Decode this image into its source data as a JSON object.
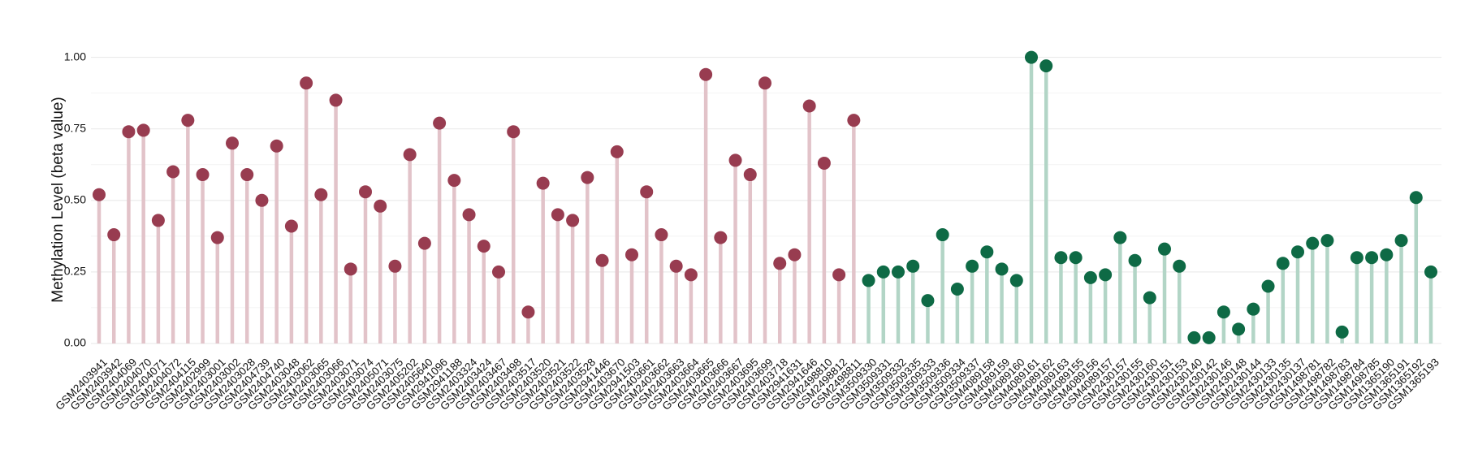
{
  "chart_data": {
    "type": "lollipop",
    "y_label": "Methylation Level (beta value)",
    "ylim": [
      -0.02,
      1.03
    ],
    "yticks": [
      {
        "value": 0,
        "label": "0.00"
      },
      {
        "value": 0.25,
        "label": "0.25"
      },
      {
        "value": 0.5,
        "label": "0.50"
      },
      {
        "value": 0.75,
        "label": "0.75"
      },
      {
        "value": 1,
        "label": "1.00"
      }
    ],
    "grid": true,
    "groups": [
      {
        "color": "#983c50",
        "stem_color": "#e2c3c9",
        "categories": [
          "GSM2403941",
          "GSM2403942",
          "GSM2404069",
          "GSM2404070",
          "GSM2404071",
          "GSM2404072",
          "GSM2404115",
          "GSM2402999",
          "GSM2403001",
          "GSM2403002",
          "GSM2403028",
          "GSM2404739",
          "GSM2404740",
          "GSM2403048",
          "GSM2403062",
          "GSM2403065",
          "GSM2403066",
          "GSM2403071",
          "GSM2403074",
          "GSM2405071",
          "GSM2403075",
          "GSM2405202",
          "GSM2405640",
          "GSM2941096",
          "GSM2941188",
          "GSM2403324",
          "GSM2403424",
          "GSM2403467",
          "GSM2403498",
          "GSM2403517",
          "GSM2403520",
          "GSM2403521",
          "GSM2403522",
          "GSM2403528",
          "GSM2941446",
          "GSM2403670",
          "GSM2941503",
          "GSM2403661",
          "GSM2403662",
          "GSM2403663",
          "GSM2403664",
          "GSM2403665",
          "GSM2403666",
          "GSM2403667",
          "GSM2403695",
          "GSM2403699",
          "GSM2403718",
          "GSM2941631",
          "GSM2941646",
          "GSM2498810",
          "GSM2498812",
          "GSM2498811"
        ],
        "values": [
          0.52,
          0.38,
          0.74,
          0.745,
          0.43,
          0.6,
          0.78,
          0.59,
          0.37,
          0.7,
          0.59,
          0.5,
          0.69,
          0.41,
          0.91,
          0.52,
          0.85,
          0.26,
          0.53,
          0.48,
          0.27,
          0.66,
          0.35,
          0.77,
          0.57,
          0.45,
          0.34,
          0.25,
          0.74,
          0.11,
          0.56,
          0.45,
          0.43,
          0.58,
          0.29,
          0.67,
          0.31,
          0.53,
          0.38,
          0.27,
          0.24,
          0.94,
          0.37,
          0.64,
          0.59,
          0.91,
          0.28,
          0.31,
          0.83,
          0.63,
          0.24,
          0.78
        ]
      },
      {
        "color": "#0e6a45",
        "stem_color": "#b2d5c6",
        "categories": [
          "GSM3509330",
          "GSM3509331",
          "GSM3509332",
          "GSM3509335",
          "GSM3509333",
          "GSM3509336",
          "GSM3509334",
          "GSM3509337",
          "GSM4089158",
          "GSM4089159",
          "GSM4089160",
          "GSM4089161",
          "GSM4089162",
          "GSM4089163",
          "GSM4089155",
          "GSM4089156",
          "GSM4089157",
          "GSM2430157",
          "GSM2430155",
          "GSM2430160",
          "GSM2430151",
          "GSM2430153",
          "GSM2430140",
          "GSM2430142",
          "GSM2430146",
          "GSM2430148",
          "GSM2430144",
          "GSM2430133",
          "GSM2430135",
          "GSM2430137",
          "GSM1498781",
          "GSM1498782",
          "GSM1498783",
          "GSM1498784",
          "GSM1498785",
          "GSM1365190",
          "GSM1365191",
          "GSM1365192",
          "GSM1365193"
        ],
        "values": [
          0.22,
          0.25,
          0.25,
          0.27,
          0.15,
          0.38,
          0.19,
          0.27,
          0.32,
          0.26,
          0.22,
          1.0,
          0.97,
          0.3,
          0.3,
          0.23,
          0.24,
          0.37,
          0.29,
          0.16,
          0.33,
          0.27,
          0.02,
          0.02,
          0.11,
          0.05,
          0.12,
          0.2,
          0.28,
          0.32,
          0.35,
          0.36,
          0.04,
          0.3,
          0.3,
          0.31,
          0.36,
          0.51,
          0.25
        ]
      }
    ]
  }
}
